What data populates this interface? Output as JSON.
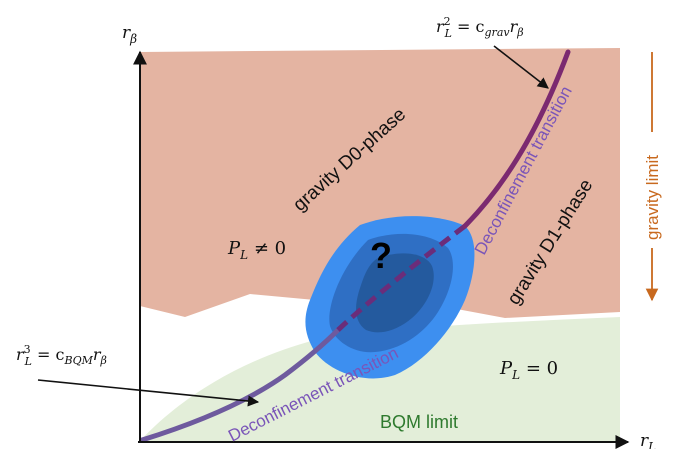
{
  "axes": {
    "x_label_main": "r",
    "x_label_sub": "L",
    "y_label_main": "r",
    "y_label_sub": "β"
  },
  "regions": {
    "gravity_d0": "gravity D0-phase",
    "gravity_d1": "gravity D1-phase",
    "bqm_limit": "BQM limit",
    "gravity_limit": "gravity limit",
    "unknown_marker": "?"
  },
  "transitions": {
    "upper": "Deconfinement transition",
    "lower": "Deconfinement transition"
  },
  "equations": {
    "pl_nonzero": {
      "lhs": "P",
      "sub": "L",
      "rel": " ≠ 0"
    },
    "pl_zero": {
      "lhs": "P",
      "sub": "L",
      "rel": " = 0"
    },
    "grav_curve": {
      "lhs": "r",
      "lhs_sup": "2",
      "lhs_sub": "L",
      "eq": " = c",
      "c_sub": "grav",
      "rhs": "r",
      "rhs_sub": "β"
    },
    "bqm_curve": {
      "lhs": "r",
      "lhs_sup": "3",
      "lhs_sub": "L",
      "eq": " = c",
      "c_sub": "BQM",
      "rhs": "r",
      "rhs_sub": "β"
    }
  },
  "colors": {
    "gravity_region": "#e4b4a2",
    "bqm_region": "#e3eed9",
    "curve": "#7b2a70",
    "curve_lower": "#6e5a9e",
    "blob_outer": "#3d8ff0",
    "blob_mid": "#2f6fc4",
    "blob_inner": "#245a9e",
    "transition_text": "#7a55b8",
    "bqm_text": "#2e7a2e",
    "gravity_limit": "#c8691e"
  }
}
